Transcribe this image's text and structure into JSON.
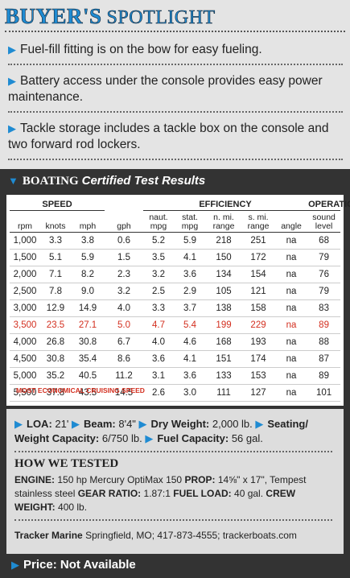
{
  "header": {
    "title_bold": "BUYER'S",
    "title_light": "SPOTLIGHT"
  },
  "bullets": [
    "Fuel-fill fitting is on the bow for easy fueling.",
    "Battery access under the console provides easy power maintenance.",
    "Tackle storage includes a tackle box on the console and two forward rod lockers."
  ],
  "test_results": {
    "brand": "BOATING",
    "title": "Certified Test Results",
    "groups": [
      "SPEED",
      "EFFICIENCY",
      "OPERATION"
    ],
    "columns": [
      "rpm",
      "knots",
      "mph",
      "gph",
      "naut. mpg",
      "stat. mpg",
      "n. mi. range",
      "s. mi. range",
      "angle",
      "sound level"
    ],
    "rows": [
      [
        "1,000",
        "3.3",
        "3.8",
        "0.6",
        "5.2",
        "5.9",
        "218",
        "251",
        "na",
        "68"
      ],
      [
        "1,500",
        "5.1",
        "5.9",
        "1.5",
        "3.5",
        "4.1",
        "150",
        "172",
        "na",
        "79"
      ],
      [
        "2,000",
        "7.1",
        "8.2",
        "2.3",
        "3.2",
        "3.6",
        "134",
        "154",
        "na",
        "76"
      ],
      [
        "2,500",
        "7.8",
        "9.0",
        "3.2",
        "2.5",
        "2.9",
        "105",
        "121",
        "na",
        "79"
      ],
      [
        "3,000",
        "12.9",
        "14.9",
        "4.0",
        "3.3",
        "3.7",
        "138",
        "158",
        "na",
        "83"
      ],
      [
        "3,500",
        "23.5",
        "27.1",
        "5.0",
        "4.7",
        "5.4",
        "199",
        "229",
        "na",
        "89"
      ],
      [
        "4,000",
        "26.8",
        "30.8",
        "6.7",
        "4.0",
        "4.6",
        "168",
        "193",
        "na",
        "88"
      ],
      [
        "4,500",
        "30.8",
        "35.4",
        "8.6",
        "3.6",
        "4.1",
        "151",
        "174",
        "na",
        "87"
      ],
      [
        "5,000",
        "35.2",
        "40.5",
        "11.2",
        "3.1",
        "3.6",
        "133",
        "153",
        "na",
        "89"
      ],
      [
        "5,500",
        "37.8",
        "43.5",
        "14.5",
        "2.6",
        "3.0",
        "111",
        "127",
        "na",
        "101"
      ]
    ],
    "footnote": "MOST ECONOMICAL CRUISING SPEED"
  },
  "specs": [
    {
      "label": "LOA:",
      "value": "21'"
    },
    {
      "label": "Beam:",
      "value": "8'4\""
    },
    {
      "label": "Dry Weight:",
      "value": "2,000 lb."
    },
    {
      "label": "Seating/ Weight Capacity:",
      "value": "6/750 lb."
    },
    {
      "label": "Fuel Capacity:",
      "value": "56 gal."
    }
  ],
  "how_we_tested": {
    "title": "HOW WE TESTED",
    "items": [
      {
        "label": "ENGINE:",
        "value": "150 hp Mercury OptiMax 150"
      },
      {
        "label": "PROP:",
        "value": "14⅝\" x 17\", Tempest stainless steel"
      },
      {
        "label": "GEAR RATIO:",
        "value": "1.87:1"
      },
      {
        "label": "FUEL LOAD:",
        "value": "40 gal."
      },
      {
        "label": "CREW WEIGHT:",
        "value": "400 lb."
      }
    ]
  },
  "contact": {
    "company": "Tracker Marine",
    "details": "Springfield, MO; 417-873-4555; trackerboats.com"
  },
  "price": "Price: Not Available"
}
